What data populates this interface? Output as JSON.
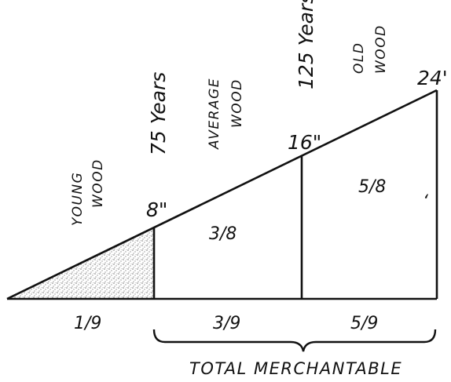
{
  "diagram": {
    "labels": {
      "young_wood_1": "YOUNG",
      "young_wood_2": "WOOD",
      "age_75": "75 Years",
      "average_wood_1": "AVERAGE",
      "average_wood_2": "WOOD",
      "age_125": "125 Years",
      "old_wood_1": "OLD",
      "old_wood_2": "WOOD",
      "dia_8": "8\"",
      "dia_16": "16\"",
      "dia_24": "24'"
    },
    "section_fractions": {
      "middle": "3/8",
      "right": "5/8"
    },
    "base_fractions": {
      "left": "1/9",
      "middle": "3/9",
      "right": "5/9"
    },
    "bracket_label": "TOTAL MERCHANTABLE",
    "stray_mark": "‘",
    "colors": {
      "ink": "#111111",
      "stipple": "#8a8a8a",
      "paper": "#ffffff"
    }
  }
}
